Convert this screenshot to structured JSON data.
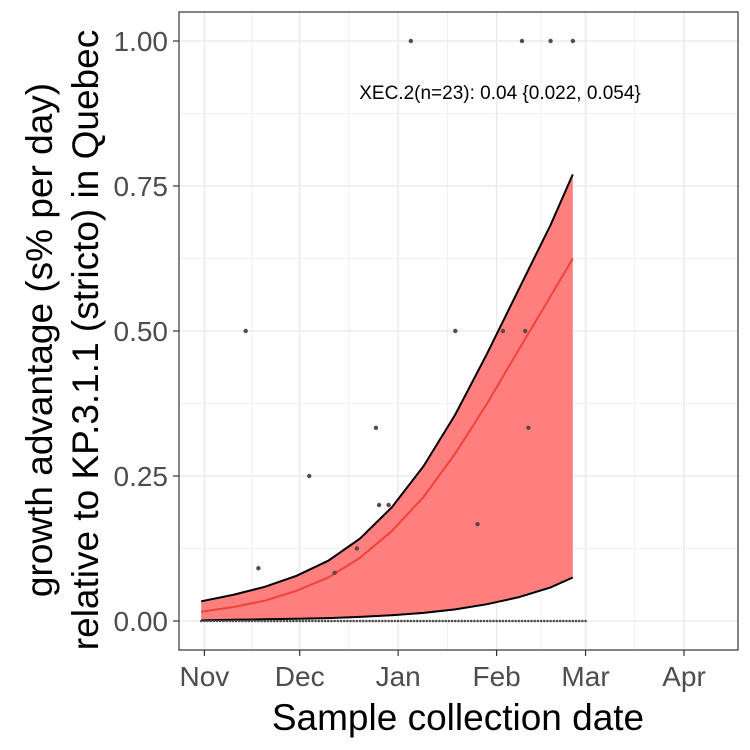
{
  "chart_data": {
    "type": "line",
    "xlabel": "Sample collection date",
    "ylabel_lines": [
      "growth advantage (s% per day)",
      "relative to KP.3.1.1 (stricto) in Quebec"
    ],
    "annotation": "XEC.2(n=23): 0.04 {0.022, 0.054}",
    "xlim": [
      "2024-10-24",
      "2025-04-18"
    ],
    "ylim": [
      -0.05,
      1.05
    ],
    "x_ticks": [
      {
        "date": "2024-11-01",
        "label": "Nov"
      },
      {
        "date": "2024-12-01",
        "label": "Dec"
      },
      {
        "date": "2025-01-01",
        "label": "Jan"
      },
      {
        "date": "2025-02-01",
        "label": "Feb"
      },
      {
        "date": "2025-03-01",
        "label": "Mar"
      },
      {
        "date": "2025-04-01",
        "label": "Apr"
      }
    ],
    "y_ticks": [
      {
        "value": 0,
        "label": "0.00"
      },
      {
        "value": 0.25,
        "label": "0.25"
      },
      {
        "value": 0.5,
        "label": "0.50"
      },
      {
        "value": 0.75,
        "label": "0.75"
      },
      {
        "value": 1,
        "label": "1.00"
      }
    ],
    "grid": true,
    "colors": {
      "fit_line": "#f0433a",
      "ci_fill": "#ff7f7f",
      "ci_edge": "#000000",
      "points": "#4d4d4d",
      "grid": "#ebebeb",
      "panel_border": "#333333"
    },
    "fit": [
      {
        "date": "2024-10-31",
        "fit": 0.016,
        "lower": 0.001,
        "upper": 0.034
      },
      {
        "date": "2024-11-10",
        "fit": 0.024,
        "lower": 0.002,
        "upper": 0.045
      },
      {
        "date": "2024-11-20",
        "fit": 0.035,
        "lower": 0.003,
        "upper": 0.059
      },
      {
        "date": "2024-11-30",
        "fit": 0.052,
        "lower": 0.004,
        "upper": 0.078
      },
      {
        "date": "2024-12-10",
        "fit": 0.075,
        "lower": 0.005,
        "upper": 0.104
      },
      {
        "date": "2024-12-20",
        "fit": 0.109,
        "lower": 0.007,
        "upper": 0.142
      },
      {
        "date": "2024-12-30",
        "fit": 0.155,
        "lower": 0.01,
        "upper": 0.196
      },
      {
        "date": "2025-01-09",
        "fit": 0.214,
        "lower": 0.014,
        "upper": 0.267
      },
      {
        "date": "2025-01-19",
        "fit": 0.289,
        "lower": 0.02,
        "upper": 0.356
      },
      {
        "date": "2025-01-29",
        "fit": 0.375,
        "lower": 0.029,
        "upper": 0.461
      },
      {
        "date": "2025-02-08",
        "fit": 0.468,
        "lower": 0.041,
        "upper": 0.572
      },
      {
        "date": "2025-02-18",
        "fit": 0.56,
        "lower": 0.058,
        "upper": 0.683
      },
      {
        "date": "2025-02-25",
        "fit": 0.625,
        "lower": 0.075,
        "upper": 0.77
      }
    ],
    "points": [
      {
        "date": "2024-11-14",
        "value": 0.5
      },
      {
        "date": "2024-11-18",
        "value": 0.091
      },
      {
        "date": "2024-12-04",
        "value": 0.25
      },
      {
        "date": "2024-12-12",
        "value": 0.083
      },
      {
        "date": "2024-12-19",
        "value": 0.125
      },
      {
        "date": "2024-12-25",
        "value": 0.333
      },
      {
        "date": "2024-12-26",
        "value": 0.2
      },
      {
        "date": "2024-12-29",
        "value": 0.2
      },
      {
        "date": "2025-01-05",
        "value": 1.0
      },
      {
        "date": "2025-01-19",
        "value": 0.5
      },
      {
        "date": "2025-01-26",
        "value": 0.167
      },
      {
        "date": "2025-02-03",
        "value": 0.5
      },
      {
        "date": "2025-02-09",
        "value": 1.0
      },
      {
        "date": "2025-02-10",
        "value": 0.5
      },
      {
        "date": "2025-02-11",
        "value": 0.333
      },
      {
        "date": "2025-02-18",
        "value": 1.0
      },
      {
        "date": "2025-02-25",
        "value": 1.0
      }
    ],
    "zero_points_from": "2024-10-31",
    "zero_points_to": "2025-03-01"
  }
}
